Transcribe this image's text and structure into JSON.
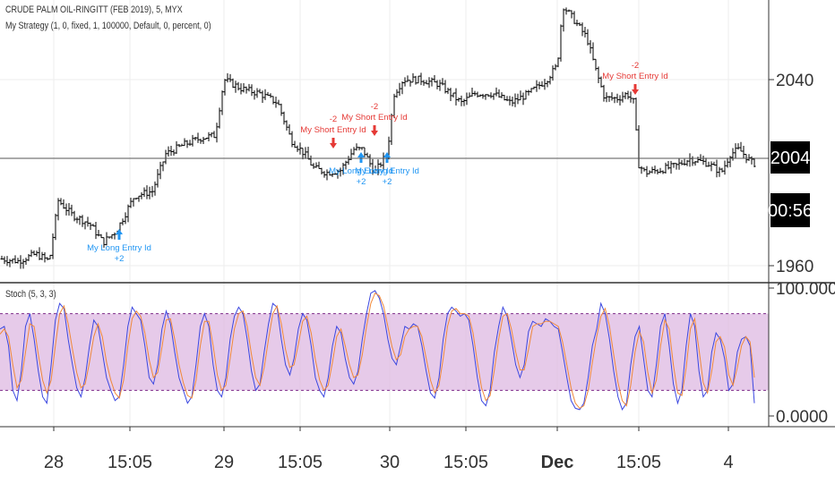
{
  "header": {
    "symbol_line": "CRUDE PALM OIL-RINGITT (FEB 2019), 5, MYX",
    "strategy_line": "My Strategy (1, 0, fixed, 1, 100000, Default, 0, percent, 0)",
    "stoch_label": "Stoch (5, 3, 3)"
  },
  "colors": {
    "bars": "#000000",
    "long": "#2196f3",
    "short": "#e53935",
    "k_line": "#3b47e0",
    "d_line": "#f0893a",
    "band_fill": "#dcb4e0",
    "band_border": "#7e2b8a",
    "pane_divider": "#333333"
  },
  "last_price_tag": "2004",
  "countdown_tag": "00:56",
  "chart_data": [
    {
      "type": "ohlc",
      "name": "price",
      "y_axis_ticks": [
        "2040",
        "1960"
      ],
      "x_axis_ticks": [
        "28",
        "15:05",
        "29",
        "15:05",
        "30",
        "15:05",
        "Dec",
        "15:05",
        "4"
      ],
      "last_price": 2004,
      "approx_close_path": [
        [
          0,
          1963
        ],
        [
          20,
          1962
        ],
        [
          40,
          1965
        ],
        [
          55,
          1962
        ],
        [
          65,
          1988
        ],
        [
          80,
          1982
        ],
        [
          100,
          1978
        ],
        [
          115,
          1970
        ],
        [
          130,
          1975
        ],
        [
          150,
          1990
        ],
        [
          170,
          1992
        ],
        [
          185,
          2008
        ],
        [
          205,
          2012
        ],
        [
          225,
          2015
        ],
        [
          240,
          2016
        ],
        [
          250,
          2040
        ],
        [
          270,
          2036
        ],
        [
          290,
          2034
        ],
        [
          310,
          2030
        ],
        [
          325,
          2014
        ],
        [
          340,
          2008
        ],
        [
          350,
          2002
        ],
        [
          365,
          2000
        ],
        [
          380,
          2001
        ],
        [
          395,
          2010
        ],
        [
          405,
          2010
        ],
        [
          418,
          2000
        ],
        [
          432,
          2008
        ],
        [
          440,
          2034
        ],
        [
          450,
          2040
        ],
        [
          470,
          2040
        ],
        [
          490,
          2038
        ],
        [
          515,
          2030
        ],
        [
          530,
          2034
        ],
        [
          550,
          2034
        ],
        [
          570,
          2030
        ],
        [
          590,
          2034
        ],
        [
          610,
          2040
        ],
        [
          622,
          2046
        ],
        [
          628,
          2072
        ],
        [
          640,
          2066
        ],
        [
          655,
          2058
        ],
        [
          665,
          2044
        ],
        [
          675,
          2032
        ],
        [
          690,
          2032
        ],
        [
          700,
          2034
        ],
        [
          708,
          2030
        ],
        [
          712,
          2004
        ],
        [
          720,
          2000
        ],
        [
          735,
          2001
        ],
        [
          755,
          2003
        ],
        [
          770,
          2006
        ],
        [
          790,
          2004
        ],
        [
          805,
          2000
        ],
        [
          815,
          2008
        ],
        [
          825,
          2010
        ],
        [
          840,
          2004
        ]
      ],
      "signals": [
        {
          "kind": "long",
          "label": "My Long Entry Id",
          "qty": "+2"
        },
        {
          "kind": "short",
          "label": "My Short Entry Id",
          "qty": "-2"
        },
        {
          "kind": "short",
          "label": "My Short Entry Id",
          "qty": "-2"
        },
        {
          "kind": "long",
          "label": "My Long Entry Id",
          "qty": "+2"
        },
        {
          "kind": "long",
          "label": "My Long Entry Id",
          "qty": "+2"
        },
        {
          "kind": "short",
          "label": "My Short Entry Id",
          "qty": "-2"
        }
      ]
    },
    {
      "type": "line",
      "name": "Stoch (5, 3, 3)",
      "y_axis_ticks": [
        "100.0000",
        "0.0000"
      ],
      "ylim": [
        0,
        100
      ],
      "bands": [
        20,
        80
      ],
      "series": [
        {
          "key": "k",
          "values": [
            68,
            70,
            55,
            20,
            12,
            35,
            70,
            80,
            60,
            35,
            15,
            10,
            40,
            75,
            88,
            84,
            60,
            40,
            22,
            15,
            30,
            55,
            75,
            70,
            50,
            30,
            20,
            12,
            15,
            40,
            70,
            85,
            80,
            75,
            55,
            30,
            25,
            40,
            68,
            82,
            72,
            50,
            30,
            20,
            10,
            15,
            40,
            70,
            80,
            70,
            40,
            20,
            15,
            30,
            60,
            78,
            85,
            80,
            60,
            35,
            20,
            25,
            50,
            72,
            88,
            85,
            60,
            40,
            32,
            45,
            68,
            80,
            75,
            55,
            30,
            20,
            15,
            30,
            55,
            70,
            65,
            45,
            30,
            25,
            35,
            60,
            80,
            96,
            98,
            92,
            80,
            60,
            45,
            40,
            55,
            70,
            68,
            72,
            70,
            55,
            35,
            18,
            14,
            30,
            60,
            80,
            85,
            82,
            78,
            80,
            75,
            55,
            30,
            12,
            8,
            20,
            50,
            70,
            85,
            78,
            60,
            40,
            30,
            40,
            66,
            74,
            72,
            70,
            76,
            74,
            70,
            68,
            50,
            30,
            12,
            6,
            5,
            10,
            30,
            55,
            68,
            88,
            80,
            60,
            35,
            15,
            5,
            10,
            40,
            62,
            70,
            45,
            20,
            15,
            40,
            70,
            80,
            55,
            25,
            10,
            20,
            55,
            80,
            70,
            35,
            15,
            20,
            50,
            65,
            60,
            45,
            20,
            25,
            50,
            60,
            62,
            55,
            10
          ]
        },
        {
          "key": "d",
          "values": [
            64,
            68,
            62,
            40,
            22,
            28,
            50,
            72,
            70,
            48,
            28,
            18,
            28,
            55,
            80,
            86,
            72,
            52,
            34,
            22,
            25,
            42,
            62,
            72,
            62,
            42,
            28,
            18,
            14,
            28,
            55,
            76,
            82,
            78,
            65,
            44,
            30,
            34,
            54,
            75,
            76,
            60,
            40,
            26,
            16,
            14,
            28,
            55,
            74,
            74,
            55,
            32,
            20,
            24,
            45,
            68,
            80,
            82,
            70,
            48,
            30,
            24,
            38,
            60,
            80,
            86,
            72,
            52,
            38,
            40,
            56,
            74,
            78,
            65,
            44,
            28,
            20,
            24,
            42,
            62,
            68,
            55,
            40,
            30,
            32,
            48,
            70,
            88,
            96,
            94,
            86,
            70,
            54,
            44,
            48,
            62,
            68,
            70,
            70,
            62,
            45,
            28,
            18,
            24,
            45,
            70,
            82,
            84,
            80,
            80,
            78,
            65,
            42,
            22,
            12,
            16,
            36,
            60,
            78,
            80,
            68,
            50,
            36,
            36,
            52,
            70,
            72,
            72,
            74,
            74,
            72,
            70,
            58,
            40,
            22,
            10,
            6,
            8,
            20,
            42,
            62,
            78,
            84,
            70,
            48,
            26,
            12,
            8,
            24,
            50,
            66,
            58,
            34,
            18,
            28,
            55,
            75,
            68,
            40,
            18,
            16,
            38,
            68,
            76,
            52,
            26,
            18,
            35,
            58,
            62,
            54,
            32,
            24,
            38,
            55,
            62,
            58,
            30
          ]
        }
      ]
    }
  ]
}
